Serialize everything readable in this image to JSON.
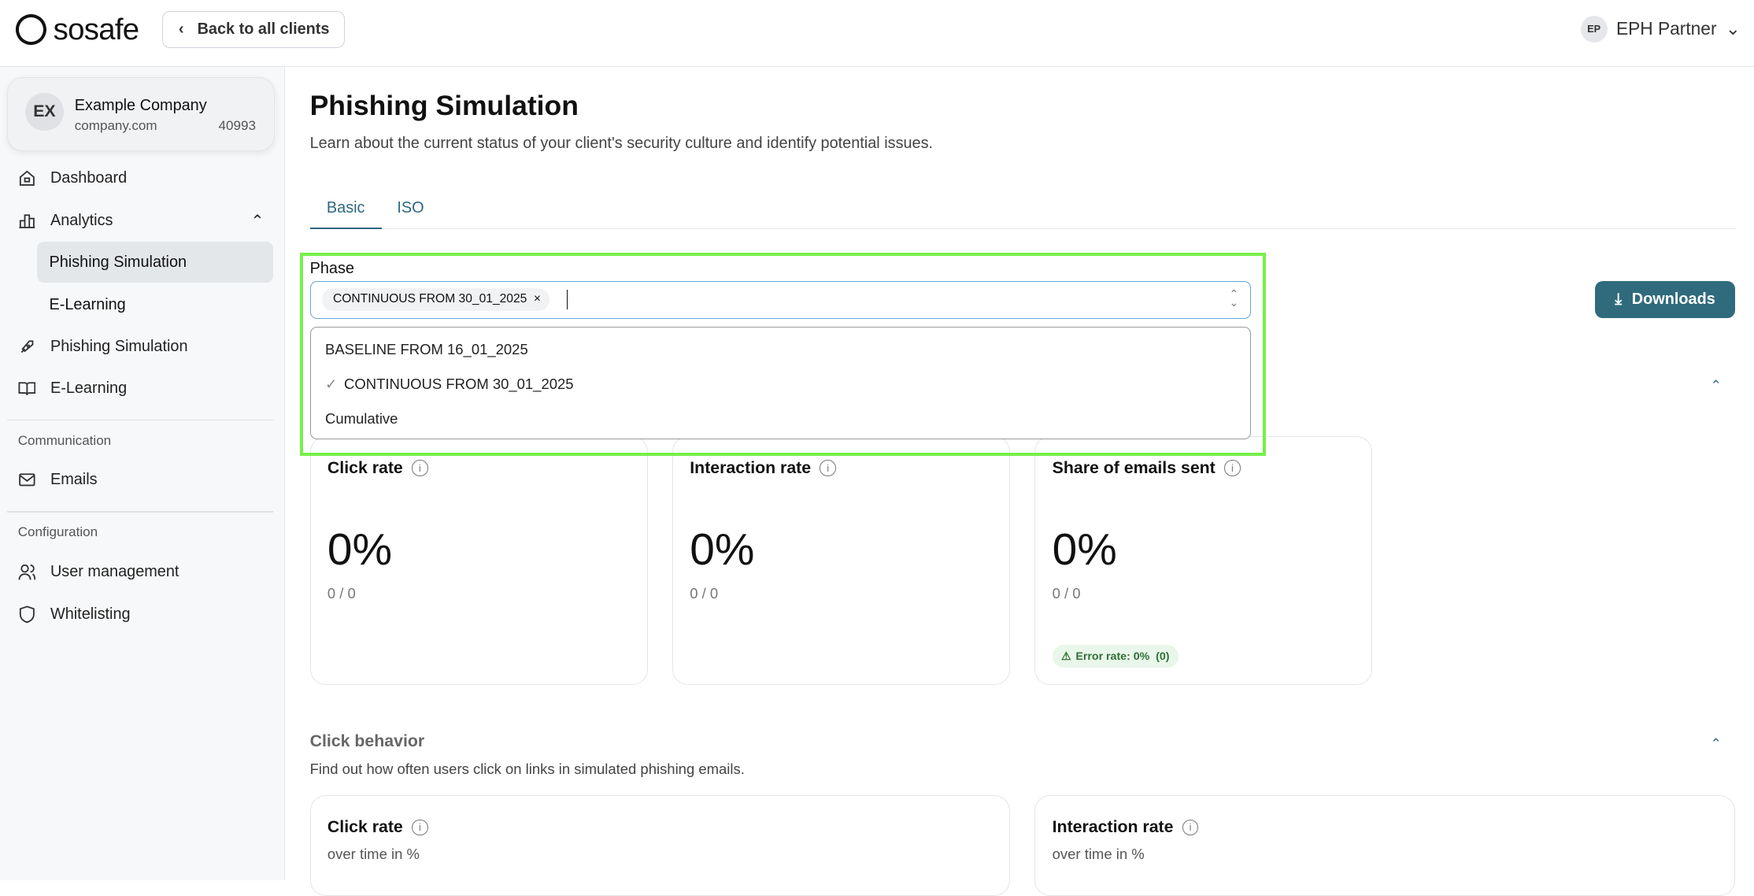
{
  "header": {
    "logo": "sosafe",
    "back_label": "Back to all clients",
    "user_initials": "EP",
    "user_name": "EPH Partner"
  },
  "client": {
    "initials": "EX",
    "name": "Example Company",
    "domain": "company.com",
    "id": "40993"
  },
  "sidebar": {
    "dashboard": "Dashboard",
    "analytics": "Analytics",
    "analytics_sub": [
      "Phishing Simulation",
      "E-Learning"
    ],
    "phishing": "Phishing Simulation",
    "elearning": "E-Learning",
    "communication": "Communication",
    "emails": "Emails",
    "configuration": "Configuration",
    "user_management": "User management",
    "whitelisting": "Whitelisting"
  },
  "page": {
    "title": "Phishing Simulation",
    "description": "Learn about the current status of your client's security culture and identify potential issues.",
    "tabs": [
      "Basic",
      "ISO"
    ],
    "active_tab": "Basic"
  },
  "phase": {
    "label": "Phase",
    "selected_chip": "CONTINUOUS FROM 30_01_2025",
    "options": [
      "BASELINE FROM 16_01_2025",
      "CONTINUOUS FROM 30_01_2025",
      "Cumulative"
    ],
    "checked_option": "CONTINUOUS FROM 30_01_2025"
  },
  "downloads_label": "Downloads",
  "cards": [
    {
      "title": "Click rate",
      "value": "0%",
      "ratio": "0 / 0"
    },
    {
      "title": "Interaction rate",
      "value": "0%",
      "ratio": "0 / 0"
    },
    {
      "title": "Share of emails sent",
      "value": "0%",
      "ratio": "0 / 0",
      "badge": "Error rate: 0%  (0)"
    }
  ],
  "click_behavior": {
    "title": "Click behavior",
    "description": "Find out how often users click on links in simulated phishing emails.",
    "cards": [
      {
        "title": "Click rate",
        "subtitle": "over time in %"
      },
      {
        "title": "Interaction rate",
        "subtitle": "over time in %"
      }
    ]
  },
  "colors": {
    "accent": "#2f6b7c",
    "highlight": "#76f04a",
    "badge_bg": "#e9f6ea"
  }
}
